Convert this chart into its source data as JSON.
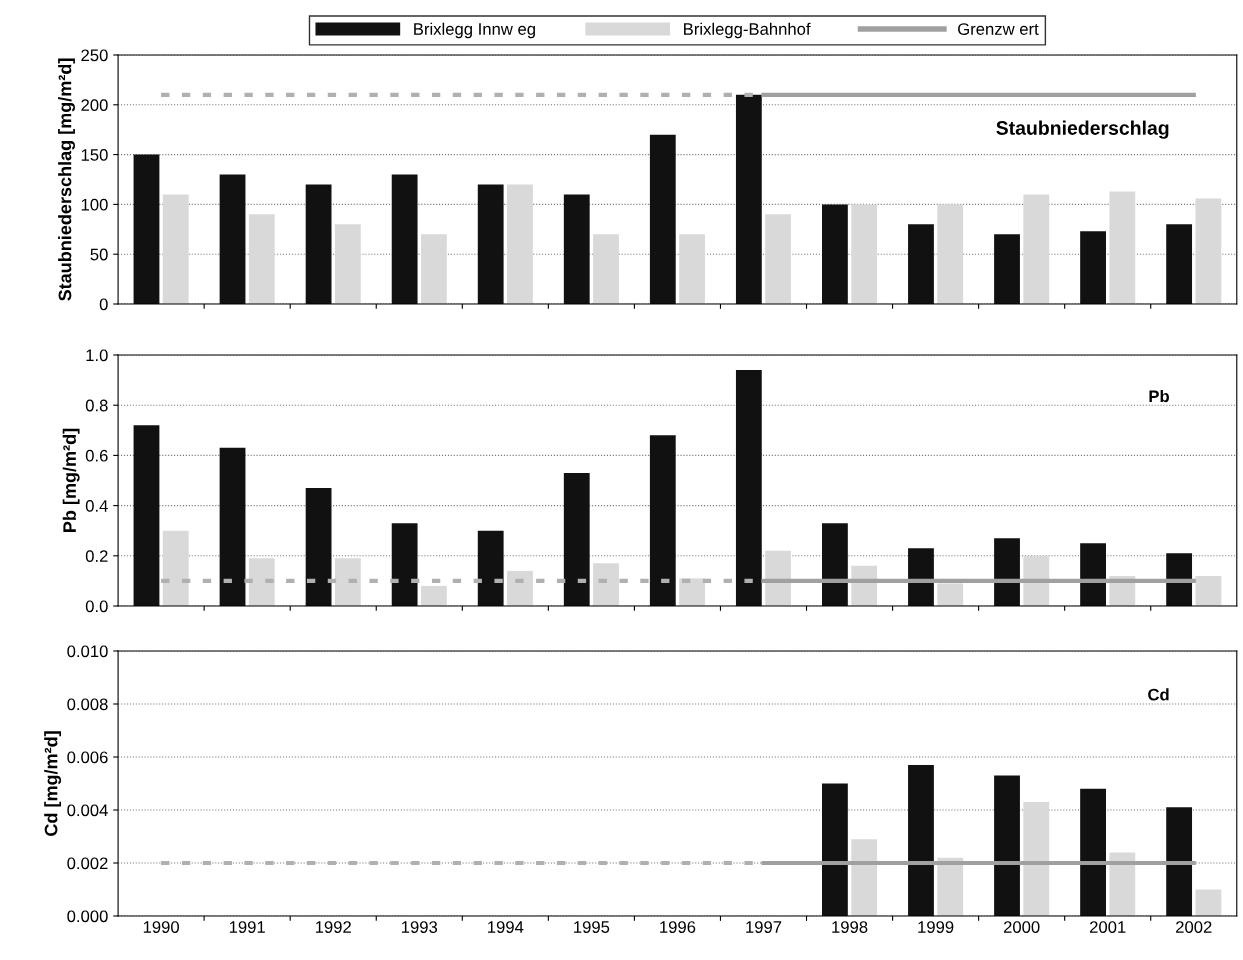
{
  "chart_data": [
    {
      "type": "bar",
      "title": "Staubniederschlag",
      "ylabel": "Staubniederschlag [mg/m²d]",
      "categories": [
        "1990",
        "1991",
        "1992",
        "1993",
        "1994",
        "1995",
        "1996",
        "1997",
        "1998",
        "1999",
        "2000",
        "2001",
        "2002"
      ],
      "series": [
        {
          "name": "Brixlegg Innw eg",
          "color": "#111111",
          "values": [
            150,
            130,
            120,
            130,
            120,
            110,
            170,
            210,
            100,
            80,
            70,
            73,
            80
          ]
        },
        {
          "name": "Brixlegg-Bahnhof",
          "color": "#d9d9d9",
          "values": [
            110,
            90,
            80,
            70,
            120,
            70,
            70,
            90,
            100,
            100,
            110,
            113,
            106
          ]
        },
        {
          "type": "line",
          "color": "#b0b0b0",
          "line_style": "dashed",
          "values": [
            210,
            210,
            210,
            210,
            210,
            210,
            210,
            210,
            null,
            null,
            null,
            null,
            null
          ]
        },
        {
          "type": "line",
          "name": "Grenzw ert",
          "color": "#a0a0a0",
          "line_style": "solid",
          "values": [
            null,
            null,
            null,
            null,
            null,
            null,
            null,
            210,
            210,
            210,
            210,
            210,
            210
          ]
        }
      ],
      "ylim": [
        0,
        250
      ],
      "yticks": [
        0,
        50,
        100,
        150,
        200,
        250
      ],
      "grid": "y",
      "legend": "top",
      "tick_labels": "y"
    },
    {
      "type": "bar",
      "title": "Pb",
      "ylabel": "Pb [mg/m²d]",
      "categories": [
        "1990",
        "1991",
        "1992",
        "1993",
        "1994",
        "1995",
        "1996",
        "1997",
        "1998",
        "1999",
        "2000",
        "2001",
        "2002"
      ],
      "series": [
        {
          "color": "#111111",
          "values": [
            0.72,
            0.63,
            0.47,
            0.33,
            0.3,
            0.53,
            0.68,
            0.94,
            0.33,
            0.23,
            0.27,
            0.25,
            0.21
          ]
        },
        {
          "color": "#d9d9d9",
          "values": [
            0.3,
            0.19,
            0.19,
            0.08,
            0.14,
            0.17,
            0.11,
            0.22,
            0.16,
            0.09,
            0.2,
            0.12,
            0.12
          ]
        },
        {
          "type": "line",
          "color": "#b0b0b0",
          "line_style": "dashed",
          "values": [
            0.1,
            0.1,
            0.1,
            0.1,
            0.1,
            0.1,
            0.1,
            0.1,
            null,
            null,
            null,
            null,
            null
          ]
        },
        {
          "type": "line",
          "color": "#a0a0a0",
          "line_style": "solid",
          "values": [
            null,
            null,
            null,
            null,
            null,
            null,
            null,
            0.1,
            0.1,
            0.1,
            0.1,
            0.1,
            0.1
          ]
        }
      ],
      "ylim": [
        0,
        1.0
      ],
      "yticks": [
        {
          "value": 0,
          "label": "0.0"
        },
        {
          "value": 0.2,
          "label": "0.2"
        },
        {
          "value": 0.4,
          "label": "0.4"
        },
        {
          "value": 0.6,
          "label": "0.6"
        },
        {
          "value": 0.8,
          "label": "0.8"
        },
        {
          "value": 1.0,
          "label": "1.0"
        }
      ],
      "grid": "y",
      "tick_labels": "y"
    },
    {
      "type": "bar",
      "title": "Cd",
      "ylabel": "Cd [mg/m²d]",
      "categories": [
        "1990",
        "1991",
        "1992",
        "1993",
        "1994",
        "1995",
        "1996",
        "1997",
        "1998",
        "1999",
        "2000",
        "2001",
        "2002"
      ],
      "series": [
        {
          "color": "#111111",
          "values": [
            null,
            null,
            null,
            null,
            null,
            null,
            null,
            null,
            0.005,
            0.0057,
            0.0053,
            0.0048,
            0.0041
          ]
        },
        {
          "color": "#d9d9d9",
          "values": [
            null,
            null,
            null,
            null,
            null,
            null,
            null,
            null,
            0.0029,
            0.0022,
            0.0043,
            0.0024,
            0.001
          ]
        },
        {
          "type": "line",
          "color": "#b0b0b0",
          "line_style": "dashed",
          "values": [
            0.002,
            0.002,
            0.002,
            0.002,
            0.002,
            0.002,
            0.002,
            0.002,
            null,
            null,
            null,
            null,
            null
          ]
        },
        {
          "type": "line",
          "color": "#a0a0a0",
          "line_style": "solid",
          "values": [
            null,
            null,
            null,
            null,
            null,
            null,
            null,
            0.002,
            0.002,
            0.002,
            0.002,
            0.002,
            0.002
          ]
        }
      ],
      "ylim": [
        0,
        0.01
      ],
      "yticks": [
        {
          "value": 0,
          "label": "0.000"
        },
        {
          "value": 0.002,
          "label": "0.002"
        },
        {
          "value": 0.004,
          "label": "0.004"
        },
        {
          "value": 0.006,
          "label": "0.006"
        },
        {
          "value": 0.008,
          "label": "0.008"
        },
        {
          "value": 0.01,
          "label": "0.010"
        }
      ],
      "grid": "y"
    }
  ]
}
